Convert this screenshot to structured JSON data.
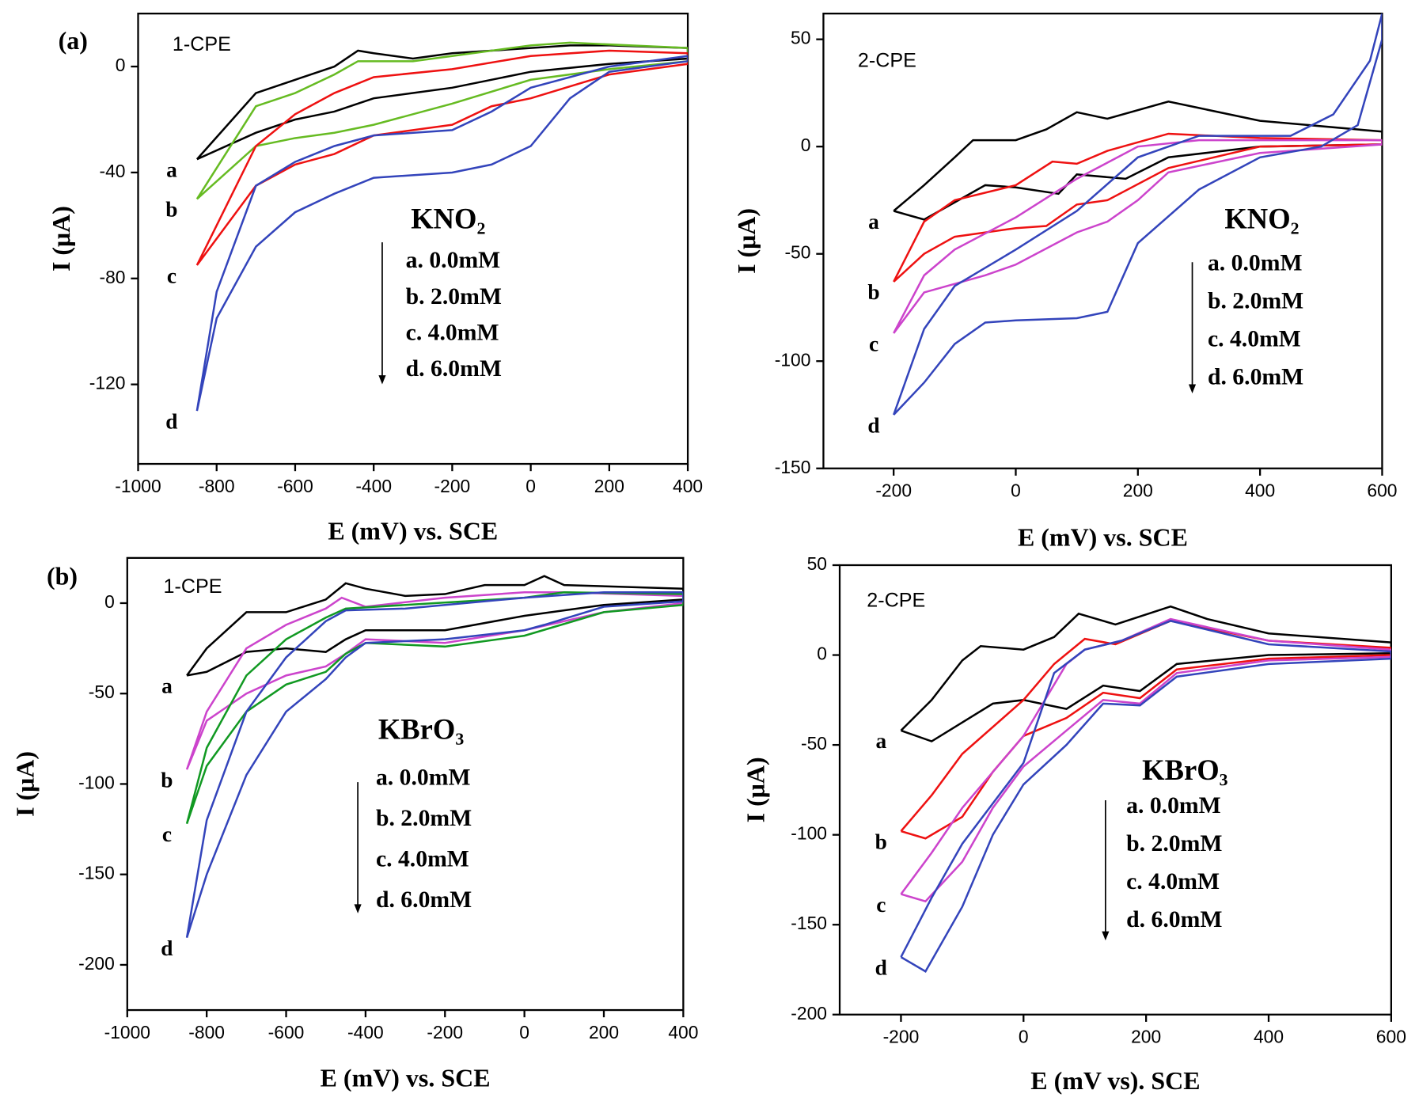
{
  "chart_data": [
    {
      "type": "line",
      "panel_label": "(a)",
      "electrode": "1-CPE",
      "compound": "KNO₂",
      "xlabel": "E (mV) vs. SCE",
      "ylabel": "I (μA)",
      "xlim": [
        -1000,
        400
      ],
      "xticks": [
        -1000,
        -800,
        -600,
        -400,
        -200,
        0,
        200,
        400
      ],
      "ylim": [
        -150,
        20
      ],
      "yticks": [
        -120,
        -80,
        -40,
        0
      ],
      "series": [
        {
          "name": "a. 0.0mM",
          "label": "a",
          "color": "#000000",
          "x": [
            -850,
            -700,
            -600,
            -500,
            -440,
            -400,
            -300,
            -200,
            -100,
            0,
            100,
            200,
            400,
            400,
            200,
            0,
            -200,
            -300,
            -400,
            -500,
            -600,
            -700,
            -850
          ],
          "values": [
            -35,
            -10,
            -5,
            0,
            6,
            5,
            3,
            5,
            6,
            7,
            8,
            8,
            7,
            3,
            1,
            -2,
            -8,
            -10,
            -12,
            -17,
            -20,
            -25,
            -35
          ]
        },
        {
          "name": "b. 2.0mM",
          "label": "b",
          "color": "#66bb22",
          "x": [
            -850,
            -700,
            -600,
            -500,
            -440,
            -300,
            -200,
            0,
            100,
            400,
            400,
            200,
            0,
            -200,
            -400,
            -500,
            -600,
            -700,
            -850
          ],
          "values": [
            -50,
            -15,
            -10,
            -3,
            2,
            2,
            4,
            8,
            9,
            7,
            2,
            -1,
            -5,
            -14,
            -22,
            -25,
            -27,
            -30,
            -50
          ]
        },
        {
          "name": "c. 4.0mM",
          "label": "c",
          "color": "#ee1111",
          "x": [
            -850,
            -700,
            -600,
            -500,
            -400,
            -200,
            0,
            200,
            400,
            400,
            200,
            0,
            -100,
            -200,
            -400,
            -500,
            -600,
            -700,
            -850
          ],
          "values": [
            -75,
            -30,
            -18,
            -10,
            -4,
            -1,
            4,
            6,
            5,
            1,
            -3,
            -12,
            -15,
            -22,
            -26,
            -33,
            -37,
            -45,
            -75
          ]
        },
        {
          "name": "d. 6.0mM",
          "label": "d",
          "color": "#3344bb",
          "x": [
            -850,
            -800,
            -700,
            -600,
            -500,
            -400,
            -200,
            -100,
            0,
            200,
            400,
            400,
            200,
            100,
            0,
            -100,
            -200,
            -400,
            -500,
            -600,
            -700,
            -800,
            -850
          ],
          "values": [
            -130,
            -85,
            -45,
            -36,
            -30,
            -26,
            -24,
            -17,
            -8,
            0,
            4,
            2,
            -2,
            -12,
            -30,
            -37,
            -40,
            -42,
            -48,
            -55,
            -68,
            -95,
            -130
          ]
        }
      ]
    },
    {
      "type": "line",
      "electrode": "2-CPE",
      "compound": "KNO₂",
      "xlabel": "E (mV) vs. SCE",
      "ylabel": "I (μA)",
      "xlim": [
        -315,
        600
      ],
      "xticks": [
        -200,
        0,
        200,
        400,
        600
      ],
      "ylim": [
        -150,
        62
      ],
      "yticks": [
        -150,
        -100,
        -50,
        0,
        50
      ],
      "series": [
        {
          "name": "a. 0.0mM",
          "label": "a",
          "color": "#000000",
          "x": [
            -200,
            -150,
            -100,
            -70,
            0,
            50,
            100,
            150,
            250,
            300,
            400,
            600,
            600,
            400,
            250,
            180,
            100,
            70,
            0,
            -50,
            -150,
            -200
          ],
          "values": [
            -30,
            -18,
            -5,
            3,
            3,
            8,
            16,
            13,
            21,
            18,
            12,
            7,
            1,
            0,
            -5,
            -15,
            -13,
            -22,
            -19,
            -18,
            -34,
            -30
          ]
        },
        {
          "name": "b. 2.0mM",
          "label": "b",
          "color": "#ee1111",
          "x": [
            -200,
            -150,
            -100,
            0,
            60,
            100,
            150,
            250,
            400,
            600,
            600,
            400,
            250,
            150,
            100,
            50,
            0,
            -100,
            -150,
            -200
          ],
          "values": [
            -63,
            -35,
            -25,
            -18,
            -7,
            -8,
            -2,
            6,
            4,
            3,
            1,
            0,
            -10,
            -25,
            -27,
            -37,
            -38,
            -42,
            -50,
            -63
          ]
        },
        {
          "name": "c. 4.0mM",
          "label": "c",
          "color": "#cc44cc",
          "x": [
            -200,
            -150,
            -100,
            0,
            100,
            200,
            300,
            600,
            600,
            400,
            250,
            200,
            150,
            100,
            0,
            -50,
            -150,
            -200
          ],
          "values": [
            -87,
            -60,
            -48,
            -33,
            -15,
            0,
            3,
            3,
            1,
            -3,
            -12,
            -25,
            -35,
            -40,
            -55,
            -60,
            -68,
            -87
          ]
        },
        {
          "name": "d. 6.0mM",
          "label": "d",
          "color": "#3344bb",
          "x": [
            -200,
            -150,
            -100,
            0,
            100,
            200,
            300,
            450,
            520,
            580,
            600,
            600,
            560,
            500,
            400,
            300,
            200,
            150,
            100,
            0,
            -50,
            -100,
            -150,
            -200
          ],
          "values": [
            -125,
            -85,
            -65,
            -48,
            -30,
            -5,
            5,
            5,
            15,
            40,
            62,
            50,
            10,
            0,
            -5,
            -20,
            -45,
            -77,
            -80,
            -81,
            -82,
            -92,
            -110,
            -125
          ]
        }
      ]
    },
    {
      "type": "line",
      "panel_label": "(b)",
      "electrode": "1-CPE",
      "compound": "KBrO₃",
      "xlabel": "E (mV) vs. SCE",
      "ylabel": "I (μA)",
      "xlim": [
        -1000,
        400
      ],
      "xticks": [
        -1000,
        -800,
        -600,
        -400,
        -200,
        0,
        200,
        400
      ],
      "ylim": [
        -225,
        25
      ],
      "yticks": [
        -200,
        -150,
        -100,
        -50,
        0
      ],
      "series": [
        {
          "name": "a. 0.0mM",
          "label": "a",
          "color": "#000000",
          "x": [
            -850,
            -800,
            -700,
            -600,
            -500,
            -450,
            -400,
            -300,
            -200,
            -100,
            0,
            50,
            100,
            400,
            400,
            200,
            0,
            -200,
            -400,
            -450,
            -500,
            -600,
            -700,
            -800,
            -850
          ],
          "values": [
            -40,
            -25,
            -5,
            -5,
            2,
            11,
            8,
            4,
            5,
            10,
            10,
            15,
            10,
            8,
            2,
            -1,
            -7,
            -15,
            -15,
            -20,
            -27,
            -25,
            -27,
            -38,
            -40
          ]
        },
        {
          "name": "b. 2.0mM",
          "label": "b",
          "color": "#cc44cc",
          "x": [
            -850,
            -800,
            -700,
            -600,
            -500,
            -460,
            -400,
            -200,
            0,
            100,
            400,
            400,
            200,
            0,
            -200,
            -400,
            -450,
            -500,
            -600,
            -700,
            -800,
            -850
          ],
          "values": [
            -92,
            -60,
            -25,
            -12,
            -3,
            3,
            -2,
            3,
            6,
            6,
            4,
            0,
            -5,
            -15,
            -22,
            -20,
            -28,
            -35,
            -40,
            -50,
            -65,
            -92
          ]
        },
        {
          "name": "c. 4.0mM",
          "label": "c",
          "color": "#119922",
          "x": [
            -850,
            -800,
            -700,
            -600,
            -500,
            -450,
            -300,
            0,
            100,
            400,
            400,
            200,
            0,
            -200,
            -400,
            -450,
            -500,
            -600,
            -700,
            -800,
            -850
          ],
          "values": [
            -122,
            -80,
            -40,
            -20,
            -8,
            -3,
            -1,
            3,
            6,
            5,
            -1,
            -5,
            -18,
            -24,
            -22,
            -28,
            -38,
            -45,
            -60,
            -90,
            -122
          ]
        },
        {
          "name": "d. 6.0mM",
          "label": "d",
          "color": "#3344bb",
          "x": [
            -850,
            -800,
            -700,
            -600,
            -500,
            -450,
            -300,
            0,
            200,
            400,
            400,
            200,
            50,
            0,
            -200,
            -400,
            -450,
            -500,
            -600,
            -700,
            -800,
            -850
          ],
          "values": [
            -185,
            -120,
            -60,
            -30,
            -10,
            -4,
            -3,
            3,
            6,
            6,
            1,
            -2,
            -12,
            -15,
            -20,
            -22,
            -30,
            -42,
            -60,
            -95,
            -150,
            -185
          ]
        }
      ]
    },
    {
      "type": "line",
      "electrode": "2-CPE",
      "compound": "KBrO₃",
      "xlabel": "E (mV vs). SCE",
      "ylabel": "I (μA)",
      "xlim": [
        -300,
        600
      ],
      "xticks": [
        -200,
        0,
        200,
        400,
        600
      ],
      "ylim": [
        -200,
        50
      ],
      "yticks": [
        -200,
        -150,
        -100,
        -50,
        0,
        50
      ],
      "series": [
        {
          "name": "a. 0.0mM",
          "label": "a",
          "color": "#000000",
          "x": [
            -200,
            -150,
            -100,
            -70,
            0,
            50,
            90,
            150,
            240,
            300,
            400,
            600,
            600,
            400,
            250,
            190,
            130,
            70,
            0,
            -50,
            -150,
            -200
          ],
          "values": [
            -42,
            -25,
            -3,
            5,
            3,
            10,
            23,
            17,
            27,
            20,
            12,
            7,
            1,
            0,
            -5,
            -20,
            -17,
            -30,
            -25,
            -27,
            -48,
            -42
          ]
        },
        {
          "name": "b. 2.0mM",
          "label": "b",
          "color": "#ee1111",
          "x": [
            -200,
            -150,
            -100,
            0,
            50,
            100,
            150,
            240,
            400,
            600,
            600,
            400,
            250,
            190,
            130,
            70,
            0,
            -50,
            -100,
            -160,
            -200
          ],
          "values": [
            -98,
            -78,
            -55,
            -25,
            -5,
            9,
            6,
            19,
            8,
            4,
            0,
            -2,
            -8,
            -24,
            -21,
            -35,
            -45,
            -65,
            -90,
            -102,
            -98
          ]
        },
        {
          "name": "c. 4.0mM",
          "label": "c",
          "color": "#cc44cc",
          "x": [
            -200,
            -150,
            -100,
            0,
            70,
            100,
            160,
            240,
            400,
            600,
            600,
            400,
            250,
            190,
            130,
            70,
            0,
            -50,
            -100,
            -160,
            -200
          ],
          "values": [
            -133,
            -110,
            -85,
            -45,
            -5,
            3,
            8,
            20,
            8,
            3,
            -1,
            -3,
            -10,
            -27,
            -25,
            -42,
            -62,
            -85,
            -115,
            -137,
            -133
          ]
        },
        {
          "name": "d. 6.0mM",
          "label": "d",
          "color": "#3344bb",
          "x": [
            -200,
            -150,
            -100,
            0,
            50,
            100,
            160,
            240,
            400,
            600,
            600,
            400,
            250,
            190,
            130,
            70,
            0,
            -50,
            -100,
            -160,
            -200
          ],
          "values": [
            -168,
            -135,
            -105,
            -60,
            -10,
            3,
            8,
            19,
            6,
            2,
            -2,
            -5,
            -12,
            -28,
            -27,
            -50,
            -72,
            -100,
            -140,
            -176,
            -168
          ]
        }
      ]
    }
  ]
}
